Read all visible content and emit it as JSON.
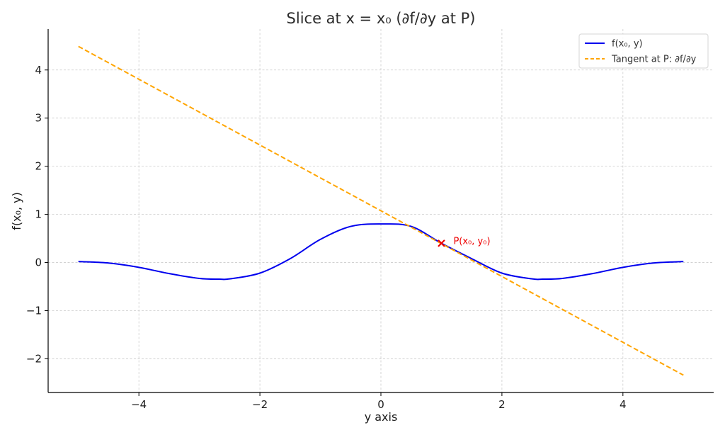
{
  "chart_data": {
    "type": "line",
    "title": "Slice at x = x₀ (∂f/∂y at P)",
    "xlabel": "y axis",
    "ylabel": "f(x₀, y)",
    "xlim": [
      -5.5,
      5.5
    ],
    "ylim": [
      -2.7,
      4.85
    ],
    "grid": true,
    "legend_position": "top-right",
    "x_ticks": [
      -4,
      -2,
      0,
      2,
      4
    ],
    "x_tick_labels": [
      "−4",
      "−2",
      "0",
      "2",
      "4"
    ],
    "y_ticks": [
      -2,
      -1,
      0,
      1,
      2,
      3,
      4
    ],
    "y_tick_labels": [
      "−2",
      "−1",
      "0",
      "1",
      "2",
      "3",
      "4"
    ],
    "series": [
      {
        "name": "f(x₀, y)",
        "style": "solid",
        "color": "#0000ee",
        "x": [
          -5,
          -4.5,
          -4,
          -3.5,
          -3,
          -2.67,
          -2.5,
          -2,
          -1.5,
          -1,
          -0.5,
          0,
          0.5,
          1,
          1.5,
          2,
          2.5,
          2.67,
          3,
          3.5,
          4,
          4.5,
          5
        ],
        "y": [
          0.02,
          -0.01,
          -0.1,
          -0.23,
          -0.33,
          -0.345,
          -0.34,
          -0.22,
          0.08,
          0.48,
          0.75,
          0.8,
          0.75,
          0.4,
          0.08,
          -0.22,
          -0.34,
          -0.345,
          -0.33,
          -0.23,
          -0.1,
          -0.01,
          0.02
        ]
      },
      {
        "name": "Tangent at P: ∂f/∂y",
        "style": "dashed",
        "color": "#ffa500",
        "x": [
          -5,
          5
        ],
        "y": [
          4.49,
          -2.34
        ]
      }
    ],
    "annotations": [
      {
        "label": "P(x₀, y₀)",
        "x": 1,
        "y": 0.4,
        "marker": "x",
        "color": "#ee0000"
      }
    ]
  }
}
